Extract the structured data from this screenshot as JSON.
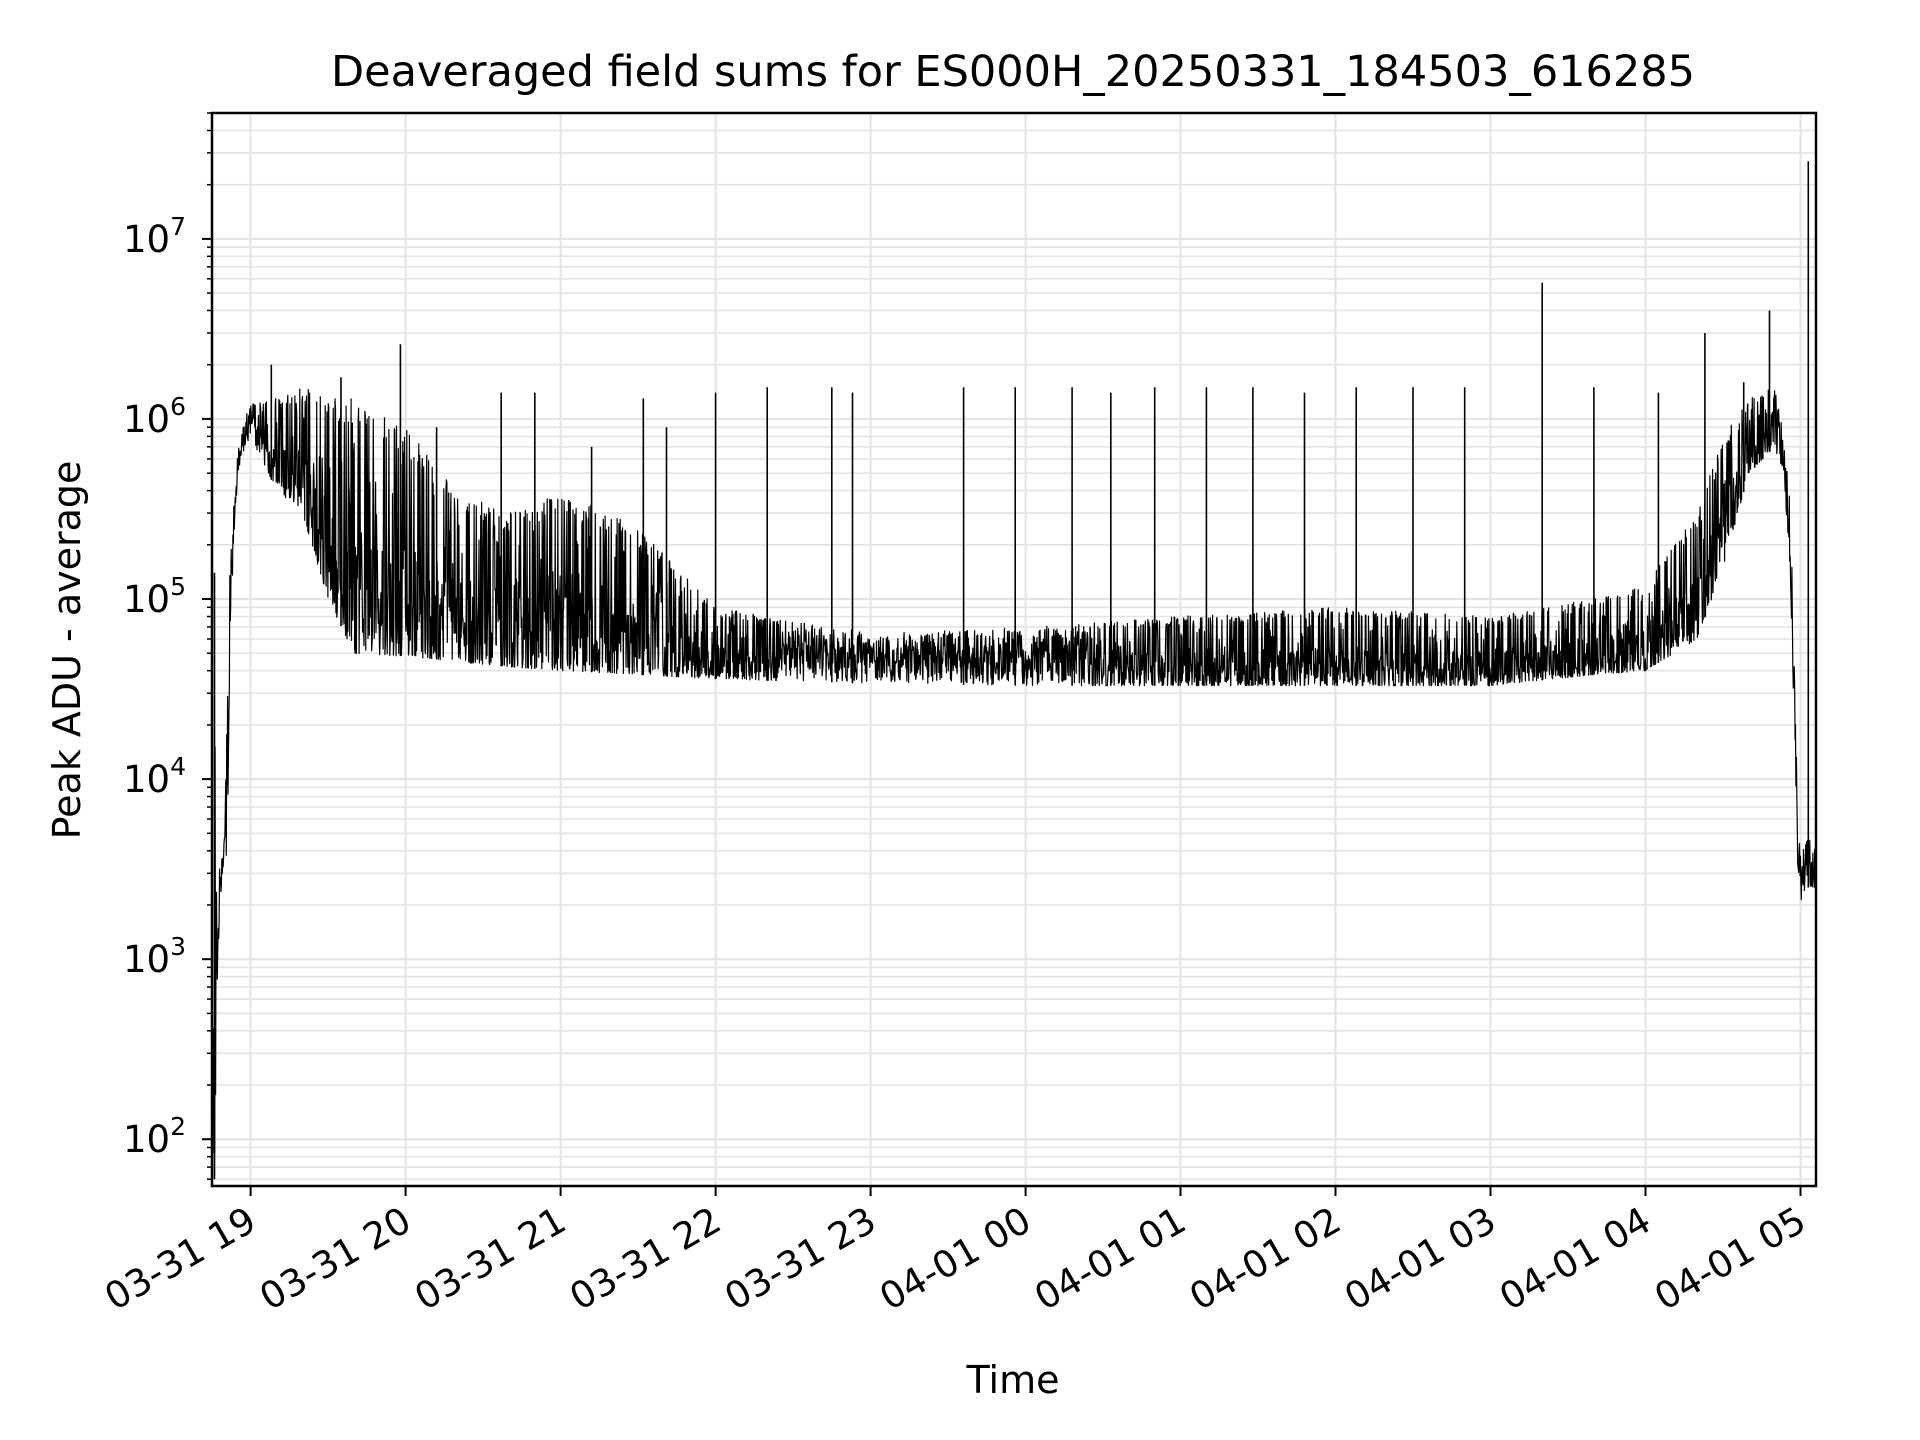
{
  "chart_data": {
    "type": "line",
    "title": "Deaveraged field sums for ES000H_20250331_184503_616285",
    "xlabel": "Time",
    "ylabel": "Peak ADU - average",
    "x_axis": {
      "type": "time",
      "range": [
        "2025-03-31 18:45:03",
        "2025-04-01 05:06:00"
      ],
      "ticks": [
        "2025-03-31 19:00",
        "2025-03-31 20:00",
        "2025-03-31 21:00",
        "2025-03-31 22:00",
        "2025-03-31 23:00",
        "2025-04-01 00:00",
        "2025-04-01 01:00",
        "2025-04-01 02:00",
        "2025-04-01 03:00",
        "2025-04-01 04:00",
        "2025-04-01 05:00"
      ],
      "tick_labels": [
        "03-31 19",
        "03-31 20",
        "03-31 21",
        "03-31 22",
        "03-31 23",
        "04-01 00",
        "04-01 01",
        "04-01 02",
        "04-01 03",
        "04-01 04",
        "04-01 05"
      ]
    },
    "y_axis": {
      "scale": "log",
      "range": [
        55,
        50000000
      ],
      "ticks": [
        100,
        1000,
        10000,
        100000,
        1000000,
        10000000
      ],
      "tick_labels": [
        {
          "base": "10",
          "exp": "2"
        },
        {
          "base": "10",
          "exp": "3"
        },
        {
          "base": "10",
          "exp": "4"
        },
        {
          "base": "10",
          "exp": "5"
        },
        {
          "base": "10",
          "exp": "6"
        },
        {
          "base": "10",
          "exp": "7"
        }
      ]
    },
    "grid": true,
    "line_color": "#000000",
    "grid_color": "#e3e3e3",
    "envelope": [
      {
        "t": "2025-03-31 18:45:03",
        "low": 60,
        "high": 120
      },
      {
        "t": "2025-03-31 18:46:00",
        "low": 60,
        "high": 140000
      },
      {
        "t": "2025-03-31 18:47:00",
        "low": 600,
        "high": 900
      },
      {
        "t": "2025-03-31 18:48:00",
        "low": 2000,
        "high": 3500
      },
      {
        "t": "2025-03-31 18:50:00",
        "low": 3500,
        "high": 5000
      },
      {
        "t": "2025-03-31 18:51:00",
        "low": 4000,
        "high": 30000
      },
      {
        "t": "2025-03-31 18:52:00",
        "low": 60000,
        "high": 150000
      },
      {
        "t": "2025-03-31 18:54:00",
        "low": 300000,
        "high": 600000
      },
      {
        "t": "2025-03-31 18:56:00",
        "low": 600000,
        "high": 900000
      },
      {
        "t": "2025-03-31 19:00:00",
        "low": 800000,
        "high": 1200000
      },
      {
        "t": "2025-03-31 19:10:00",
        "low": 400000,
        "high": 1300000
      },
      {
        "t": "2025-03-31 19:20:00",
        "low": 300000,
        "high": 1500000
      },
      {
        "t": "2025-03-31 19:30:00",
        "low": 100000,
        "high": 1400000
      },
      {
        "t": "2025-03-31 19:40:00",
        "low": 50000,
        "high": 1300000
      },
      {
        "t": "2025-03-31 20:00:00",
        "low": 48000,
        "high": 900000
      },
      {
        "t": "2025-03-31 20:20:00",
        "low": 45000,
        "high": 400000
      },
      {
        "t": "2025-03-31 20:40:00",
        "low": 42000,
        "high": 300000
      },
      {
        "t": "2025-03-31 21:00:00",
        "low": 40000,
        "high": 400000
      },
      {
        "t": "2025-03-31 21:30:00",
        "low": 38000,
        "high": 250000
      },
      {
        "t": "2025-03-31 22:00:00",
        "low": 36000,
        "high": 90000
      },
      {
        "t": "2025-03-31 23:00:00",
        "low": 34000,
        "high": 65000
      },
      {
        "t": "2025-04-01 00:00:00",
        "low": 33000,
        "high": 70000
      },
      {
        "t": "2025-04-01 01:00:00",
        "low": 33000,
        "high": 80000
      },
      {
        "t": "2025-04-01 02:00:00",
        "low": 33000,
        "high": 90000
      },
      {
        "t": "2025-04-01 03:00:00",
        "low": 33000,
        "high": 80000
      },
      {
        "t": "2025-04-01 03:40:00",
        "low": 38000,
        "high": 100000
      },
      {
        "t": "2025-04-01 04:00:00",
        "low": 40000,
        "high": 120000
      },
      {
        "t": "2025-04-01 04:20:00",
        "low": 60000,
        "high": 300000
      },
      {
        "t": "2025-04-01 04:30:00",
        "low": 150000,
        "high": 800000
      },
      {
        "t": "2025-04-01 04:40:00",
        "low": 500000,
        "high": 1300000
      },
      {
        "t": "2025-04-01 04:50:00",
        "low": 700000,
        "high": 1500000
      },
      {
        "t": "2025-04-01 04:53:00",
        "low": 500000,
        "high": 900000
      },
      {
        "t": "2025-04-01 04:56:00",
        "low": 150000,
        "high": 400000
      },
      {
        "t": "2025-04-01 04:59:00",
        "low": 3000,
        "high": 6000
      },
      {
        "t": "2025-04-01 05:00:30",
        "low": 2000,
        "high": 3500
      },
      {
        "t": "2025-04-01 05:02:00",
        "low": 2500,
        "high": 5000
      },
      {
        "t": "2025-04-01 05:06:00",
        "low": 2500,
        "high": 4000
      }
    ],
    "spikes": [
      {
        "t": "2025-03-31 18:46:00",
        "value": 140000
      },
      {
        "t": "2025-03-31 19:08:00",
        "value": 2000000
      },
      {
        "t": "2025-03-31 19:35:00",
        "value": 1700000
      },
      {
        "t": "2025-03-31 19:58:00",
        "value": 2600000
      },
      {
        "t": "2025-03-31 20:12:00",
        "value": 900000
      },
      {
        "t": "2025-03-31 20:37:00",
        "value": 1400000
      },
      {
        "t": "2025-03-31 20:50:00",
        "value": 1400000
      },
      {
        "t": "2025-03-31 21:12:00",
        "value": 700000
      },
      {
        "t": "2025-03-31 21:32:00",
        "value": 1300000
      },
      {
        "t": "2025-03-31 21:41:00",
        "value": 900000
      },
      {
        "t": "2025-03-31 22:00:00",
        "value": 1400000
      },
      {
        "t": "2025-03-31 22:20:00",
        "value": 1500000
      },
      {
        "t": "2025-03-31 22:45:00",
        "value": 1500000
      },
      {
        "t": "2025-03-31 22:53:00",
        "value": 1400000
      },
      {
        "t": "2025-03-31 23:36:00",
        "value": 1500000
      },
      {
        "t": "2025-03-31 23:56:00",
        "value": 1500000
      },
      {
        "t": "2025-04-01 00:18:00",
        "value": 1500000
      },
      {
        "t": "2025-04-01 00:33:00",
        "value": 1400000
      },
      {
        "t": "2025-04-01 00:50:00",
        "value": 1500000
      },
      {
        "t": "2025-04-01 01:10:00",
        "value": 1500000
      },
      {
        "t": "2025-04-01 01:28:00",
        "value": 1500000
      },
      {
        "t": "2025-04-01 01:48:00",
        "value": 1400000
      },
      {
        "t": "2025-04-01 02:08:00",
        "value": 1500000
      },
      {
        "t": "2025-04-01 02:30:00",
        "value": 1500000
      },
      {
        "t": "2025-04-01 02:50:00",
        "value": 1500000
      },
      {
        "t": "2025-04-01 03:20:00",
        "value": 5700000
      },
      {
        "t": "2025-04-01 03:40:00",
        "value": 1500000
      },
      {
        "t": "2025-04-01 04:05:00",
        "value": 1400000
      },
      {
        "t": "2025-04-01 04:23:00",
        "value": 3000000
      },
      {
        "t": "2025-04-01 04:38:00",
        "value": 1600000
      },
      {
        "t": "2025-04-01 04:48:00",
        "value": 4000000
      },
      {
        "t": "2025-04-01 05:03:00",
        "value": 27000000
      }
    ]
  }
}
